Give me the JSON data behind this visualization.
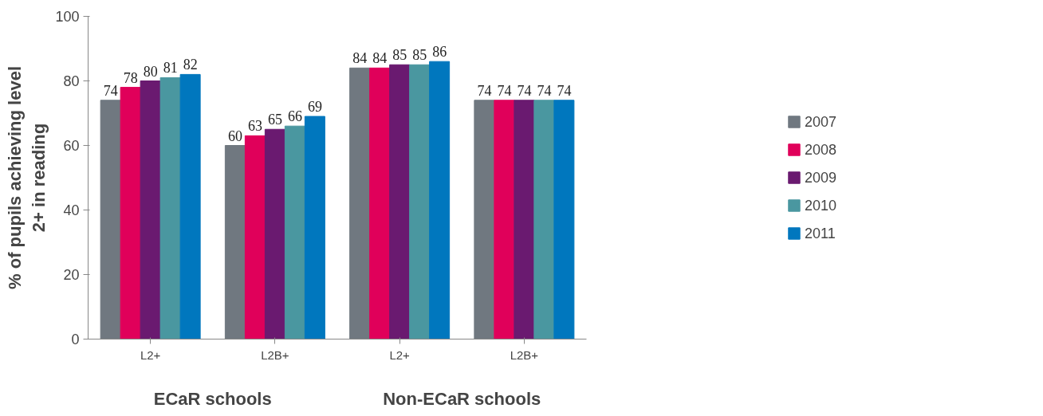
{
  "chart_data": {
    "type": "bar",
    "categories": [
      "L2+",
      "L2B+",
      "L2+",
      "L2B+"
    ],
    "ylabel": "% of pupils achieving level 2+ in reading",
    "annotations": [
      "ECaR schools",
      "Non-ECaR schools"
    ],
    "series": [
      {
        "name": "2007",
        "color": "#707880",
        "values": [
          74,
          60,
          84,
          74
        ]
      },
      {
        "name": "2008",
        "color": "#e0005a",
        "values": [
          78,
          63,
          84,
          74
        ]
      },
      {
        "name": "2009",
        "color": "#6a1a70",
        "values": [
          80,
          65,
          85,
          74
        ]
      },
      {
        "name": "2010",
        "color": "#4a97a0",
        "values": [
          81,
          66,
          85,
          74
        ]
      },
      {
        "name": "2011",
        "color": "#0077be",
        "values": [
          82,
          69,
          86,
          74
        ]
      }
    ],
    "ylim": [
      0,
      100
    ],
    "yticks": [
      0,
      20,
      40,
      60,
      80,
      100
    ],
    "data_labels": true,
    "grid": false,
    "legend": "right"
  }
}
